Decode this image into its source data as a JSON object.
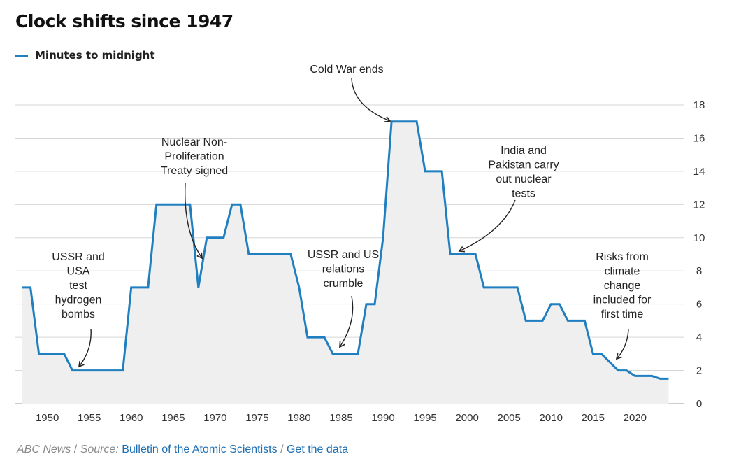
{
  "title": "Clock shifts since 1947",
  "legend": {
    "label": "Minutes to midnight"
  },
  "colors": {
    "line": "#1f7fc0",
    "area": "#efefef",
    "grid": "#d6d6d6",
    "text": "#222222",
    "link": "#1d6fb3"
  },
  "chart_data": {
    "type": "area",
    "title": "Clock shifts since 1947",
    "xlabel": "",
    "ylabel": "",
    "xlim": [
      1946.2,
      2025.8
    ],
    "ylim": [
      0,
      18
    ],
    "grid": true,
    "yaxis_side": "right",
    "legend_position": "top-left",
    "x_ticks": [
      "1950",
      "1955",
      "1960",
      "1965",
      "1970",
      "1975",
      "1980",
      "1985",
      "1990",
      "1995",
      "2000",
      "2005",
      "2010",
      "2015",
      "2020"
    ],
    "y_ticks": [
      "0",
      "2",
      "4",
      "6",
      "8",
      "10",
      "12",
      "14",
      "16",
      "18"
    ],
    "series": [
      {
        "name": "Minutes to midnight",
        "points": [
          [
            1947,
            7
          ],
          [
            1948,
            7
          ],
          [
            1949,
            3
          ],
          [
            1952,
            3
          ],
          [
            1953,
            2
          ],
          [
            1959,
            2
          ],
          [
            1960,
            7
          ],
          [
            1962,
            7
          ],
          [
            1963,
            12
          ],
          [
            1967,
            12
          ],
          [
            1968,
            7
          ],
          [
            1969,
            10
          ],
          [
            1971,
            10
          ],
          [
            1972,
            12
          ],
          [
            1973,
            12
          ],
          [
            1974,
            9
          ],
          [
            1979,
            9
          ],
          [
            1980,
            7
          ],
          [
            1981,
            4
          ],
          [
            1983,
            4
          ],
          [
            1984,
            3
          ],
          [
            1987,
            3
          ],
          [
            1988,
            6
          ],
          [
            1989,
            6
          ],
          [
            1990,
            10
          ],
          [
            1991,
            17
          ],
          [
            1994,
            17
          ],
          [
            1995,
            14
          ],
          [
            1997,
            14
          ],
          [
            1998,
            9
          ],
          [
            2001,
            9
          ],
          [
            2002,
            7
          ],
          [
            2006,
            7
          ],
          [
            2007,
            5
          ],
          [
            2009,
            5
          ],
          [
            2010,
            6
          ],
          [
            2011,
            6
          ],
          [
            2012,
            5
          ],
          [
            2014,
            5
          ],
          [
            2015,
            3
          ],
          [
            2016,
            3
          ],
          [
            2017,
            2.5
          ],
          [
            2018,
            2
          ],
          [
            2019,
            2
          ],
          [
            2020,
            1.67
          ],
          [
            2022,
            1.67
          ],
          [
            2023,
            1.5
          ],
          [
            2024,
            1.5
          ]
        ]
      }
    ],
    "annotations": [
      {
        "id": "h-bomb",
        "lines": [
          "USSR and",
          "USA",
          "test",
          "hydrogen",
          "bombs"
        ],
        "target": [
          1953,
          2
        ]
      },
      {
        "id": "npt",
        "lines": [
          "Nuclear Non-",
          "Proliferation",
          "Treaty signed"
        ],
        "target": [
          1968,
          8.8
        ]
      },
      {
        "id": "cold-war",
        "lines": [
          "Cold War ends"
        ],
        "target": [
          1991,
          17.1
        ]
      },
      {
        "id": "ussr-us",
        "lines": [
          "USSR and US",
          "relations",
          "crumble"
        ],
        "target": [
          1984.5,
          3.4
        ]
      },
      {
        "id": "india-pak",
        "lines": [
          "India and",
          "Pakistan carry",
          "out nuclear",
          "tests"
        ],
        "target": [
          1998.3,
          9.2
        ]
      },
      {
        "id": "climate",
        "lines": [
          "Risks from",
          "climate",
          "change",
          "included for",
          "first time"
        ],
        "target": [
          2017.2,
          2.8
        ]
      }
    ]
  },
  "footer": {
    "publisher": "ABC News",
    "sep1": " / ",
    "source_label": "Source: ",
    "source_link": "Bulletin of the Atomic Scientists",
    "sep2": " / ",
    "data_link": "Get the data"
  }
}
